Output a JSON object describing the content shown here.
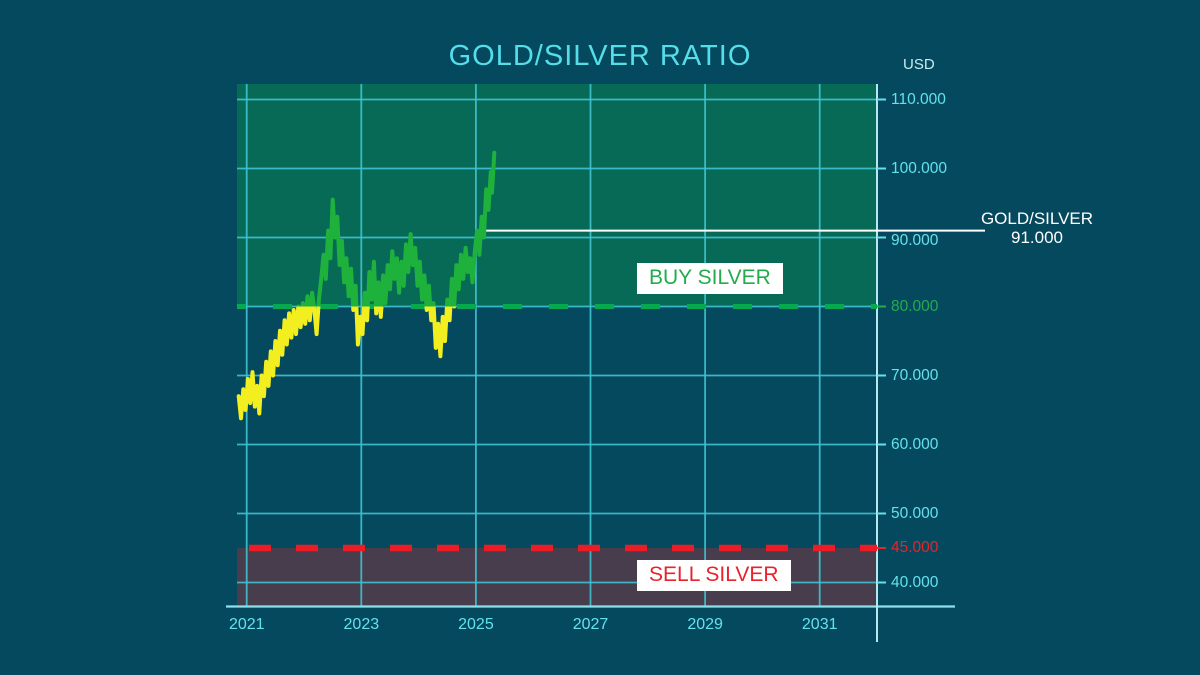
{
  "title": "GOLD/SILVER RATIO",
  "currency_label": "USD",
  "annotations": {
    "buy_label": "BUY SILVER",
    "sell_label": "SELL SILVER",
    "current_pair": "GOLD/SILVER",
    "current_value_label": "91.000"
  },
  "colors": {
    "background": "#05495e",
    "grid": "#3fc3d1",
    "buy_zone": "#066a57",
    "sell_zone": "#473d4d",
    "line_above_threshold": "#1eb23c",
    "line_below_threshold": "#f2ee1f",
    "buy_dash": "#06a94e",
    "sell_dash": "#ed1c24",
    "tick_text": "#63e1ec",
    "buy_text": "#23ab4e",
    "sell_text": "#e6242c",
    "title_text": "#55dde9",
    "usd_text": "#c6edf3",
    "axis_bottom": "#8ee1eb",
    "axis_right": "#b6e9ef",
    "current_line": "#ffffff"
  },
  "chart_data": {
    "type": "line",
    "title": "GOLD/SILVER RATIO",
    "unit": "USD",
    "xlim": [
      2020.83,
      2032.0
    ],
    "ylim": [
      36.6,
      112.25
    ],
    "grid": true,
    "x_ticks": [
      2021,
      2023,
      2025,
      2027,
      2029,
      2031
    ],
    "y_gridline_values": [
      110,
      100,
      90,
      80,
      70,
      60,
      50,
      40
    ],
    "y_ticks": [
      {
        "label": "110.000",
        "value": 110,
        "kind": "normal"
      },
      {
        "label": "100.000",
        "value": 100,
        "kind": "normal"
      },
      {
        "label": "90.000",
        "value": 90,
        "kind": "normal"
      },
      {
        "label": "80.000",
        "value": 80,
        "kind": "buy"
      },
      {
        "label": "70.000",
        "value": 70,
        "kind": "normal"
      },
      {
        "label": "60.000",
        "value": 60,
        "kind": "normal"
      },
      {
        "label": "50.000",
        "value": 50,
        "kind": "normal"
      },
      {
        "label": "45.000",
        "value": 45,
        "kind": "sell"
      },
      {
        "label": "40.000",
        "value": 40,
        "kind": "normal"
      }
    ],
    "buy_threshold": 80,
    "sell_threshold": 45,
    "current_value": 91,
    "series": [
      {
        "name": "GOLD/SILVER",
        "points": [
          [
            2020.86,
            67.0
          ],
          [
            2020.9,
            63.8
          ],
          [
            2020.94,
            68.0
          ],
          [
            2020.98,
            65.0
          ],
          [
            2021.02,
            69.5
          ],
          [
            2021.06,
            66.0
          ],
          [
            2021.1,
            70.5
          ],
          [
            2021.14,
            65.5
          ],
          [
            2021.18,
            68.5
          ],
          [
            2021.22,
            64.5
          ],
          [
            2021.26,
            70.0
          ],
          [
            2021.3,
            67.0
          ],
          [
            2021.34,
            72.0
          ],
          [
            2021.38,
            68.5
          ],
          [
            2021.42,
            73.5
          ],
          [
            2021.46,
            70.0
          ],
          [
            2021.5,
            75.0
          ],
          [
            2021.54,
            71.5
          ],
          [
            2021.58,
            76.5
          ],
          [
            2021.62,
            73.0
          ],
          [
            2021.66,
            78.0
          ],
          [
            2021.7,
            74.5
          ],
          [
            2021.74,
            79.0
          ],
          [
            2021.78,
            75.5
          ],
          [
            2021.82,
            79.5
          ],
          [
            2021.86,
            76.0
          ],
          [
            2021.9,
            80.0
          ],
          [
            2021.94,
            77.0
          ],
          [
            2021.98,
            80.5
          ],
          [
            2022.02,
            77.5
          ],
          [
            2022.06,
            81.5
          ],
          [
            2022.1,
            78.0
          ],
          [
            2022.14,
            82.0
          ],
          [
            2022.18,
            79.5
          ],
          [
            2022.22,
            76.0
          ],
          [
            2022.26,
            81.0
          ],
          [
            2022.3,
            84.0
          ],
          [
            2022.34,
            87.5
          ],
          [
            2022.38,
            84.0
          ],
          [
            2022.42,
            91.0
          ],
          [
            2022.46,
            87.0
          ],
          [
            2022.5,
            95.5
          ],
          [
            2022.54,
            90.0
          ],
          [
            2022.58,
            93.0
          ],
          [
            2022.62,
            86.0
          ],
          [
            2022.66,
            89.5
          ],
          [
            2022.7,
            83.5
          ],
          [
            2022.74,
            87.0
          ],
          [
            2022.78,
            81.5
          ],
          [
            2022.82,
            85.5
          ],
          [
            2022.86,
            79.5
          ],
          [
            2022.9,
            83.0
          ],
          [
            2022.94,
            74.5
          ],
          [
            2022.98,
            78.5
          ],
          [
            2023.02,
            76.0
          ],
          [
            2023.06,
            82.0
          ],
          [
            2023.1,
            78.0
          ],
          [
            2023.14,
            85.0
          ],
          [
            2023.18,
            81.0
          ],
          [
            2023.22,
            86.5
          ],
          [
            2023.26,
            79.0
          ],
          [
            2023.3,
            83.5
          ],
          [
            2023.34,
            78.5
          ],
          [
            2023.38,
            84.5
          ],
          [
            2023.42,
            80.5
          ],
          [
            2023.46,
            86.0
          ],
          [
            2023.5,
            82.5
          ],
          [
            2023.54,
            88.0
          ],
          [
            2023.58,
            84.0
          ],
          [
            2023.62,
            87.0
          ],
          [
            2023.66,
            82.0
          ],
          [
            2023.7,
            86.5
          ],
          [
            2023.74,
            83.0
          ],
          [
            2023.78,
            89.0
          ],
          [
            2023.82,
            85.0
          ],
          [
            2023.86,
            90.5
          ],
          [
            2023.9,
            86.0
          ],
          [
            2023.94,
            88.5
          ],
          [
            2023.98,
            83.0
          ],
          [
            2024.02,
            86.5
          ],
          [
            2024.06,
            81.0
          ],
          [
            2024.1,
            84.5
          ],
          [
            2024.14,
            79.5
          ],
          [
            2024.18,
            83.0
          ],
          [
            2024.22,
            78.0
          ],
          [
            2024.26,
            80.5
          ],
          [
            2024.3,
            74.0
          ],
          [
            2024.34,
            77.5
          ],
          [
            2024.38,
            72.8
          ],
          [
            2024.42,
            78.5
          ],
          [
            2024.46,
            75.0
          ],
          [
            2024.5,
            81.0
          ],
          [
            2024.54,
            78.0
          ],
          [
            2024.58,
            84.0
          ],
          [
            2024.62,
            80.0
          ],
          [
            2024.66,
            86.0
          ],
          [
            2024.7,
            82.5
          ],
          [
            2024.74,
            87.5
          ],
          [
            2024.78,
            84.0
          ],
          [
            2024.82,
            88.5
          ],
          [
            2024.86,
            85.0
          ],
          [
            2024.9,
            87.0
          ],
          [
            2024.94,
            83.5
          ],
          [
            2024.98,
            88.0
          ],
          [
            2025.02,
            91.0
          ],
          [
            2025.06,
            87.5
          ],
          [
            2025.1,
            93.0
          ],
          [
            2025.14,
            90.0
          ],
          [
            2025.18,
            97.0
          ],
          [
            2025.22,
            94.0
          ],
          [
            2025.26,
            99.5
          ],
          [
            2025.28,
            96.5
          ],
          [
            2025.32,
            102.3
          ]
        ]
      }
    ],
    "legend": false
  }
}
